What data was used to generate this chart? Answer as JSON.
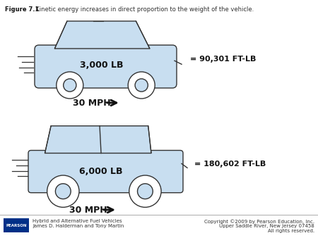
{
  "title_bold": "Figure 7.1",
  "title_text": "  Kinetic energy increases in direct proportion to the weight of the vehicle.",
  "car1_label": "3,000 LB",
  "car1_speed": "30 MPH",
  "car1_energy": "= 90,301 FT-LB",
  "car2_label": "6,000 LB",
  "car2_speed": "30 MPH",
  "car2_energy": "= 180,602 FT-LB",
  "bg_color": "#ffffff",
  "car_fill": "#c8def0",
  "car_edge": "#333333",
  "footer_left_line1": "Hybrid and Alternative Fuel Vehicles",
  "footer_left_line2": "James D. Halderman and Tony Martin",
  "footer_right_line1": "Copyright ©2009 by Pearson Education, Inc.",
  "footer_right_line2": "Upper Saddle River, New Jersey 07458",
  "footer_right_line3": "All rights reserved.",
  "pearson_box_color": "#003087",
  "pearson_text": "PEARSON"
}
